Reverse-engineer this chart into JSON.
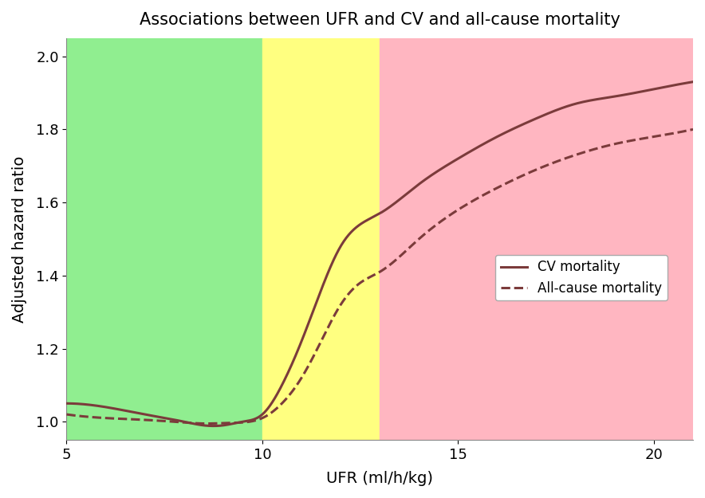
{
  "title": "Associations between UFR and CV and all-cause mortality",
  "xlabel": "UFR (ml/h/kg)",
  "ylabel": "Adjusted hazard ratio",
  "xlim": [
    5,
    21
  ],
  "ylim": [
    0.95,
    2.05
  ],
  "yticks": [
    1.0,
    1.2,
    1.4,
    1.6,
    1.8,
    2.0
  ],
  "xticks": [
    5,
    10,
    15,
    20
  ],
  "bg_green": {
    "x_start": 5,
    "x_end": 10,
    "color": "#90EE90",
    "alpha": 1.0
  },
  "bg_yellow": {
    "x_start": 10,
    "x_end": 13,
    "color": "#FFFF80",
    "alpha": 1.0
  },
  "bg_red": {
    "x_start": 13,
    "x_end": 21,
    "color": "#FFB6C1",
    "alpha": 1.0
  },
  "line_color": "#7B3B3B",
  "legend_labels": [
    "CV mortality",
    "All-cause mortality"
  ],
  "title_fontsize": 15,
  "axis_fontsize": 14,
  "tick_fontsize": 13,
  "legend_fontsize": 12
}
